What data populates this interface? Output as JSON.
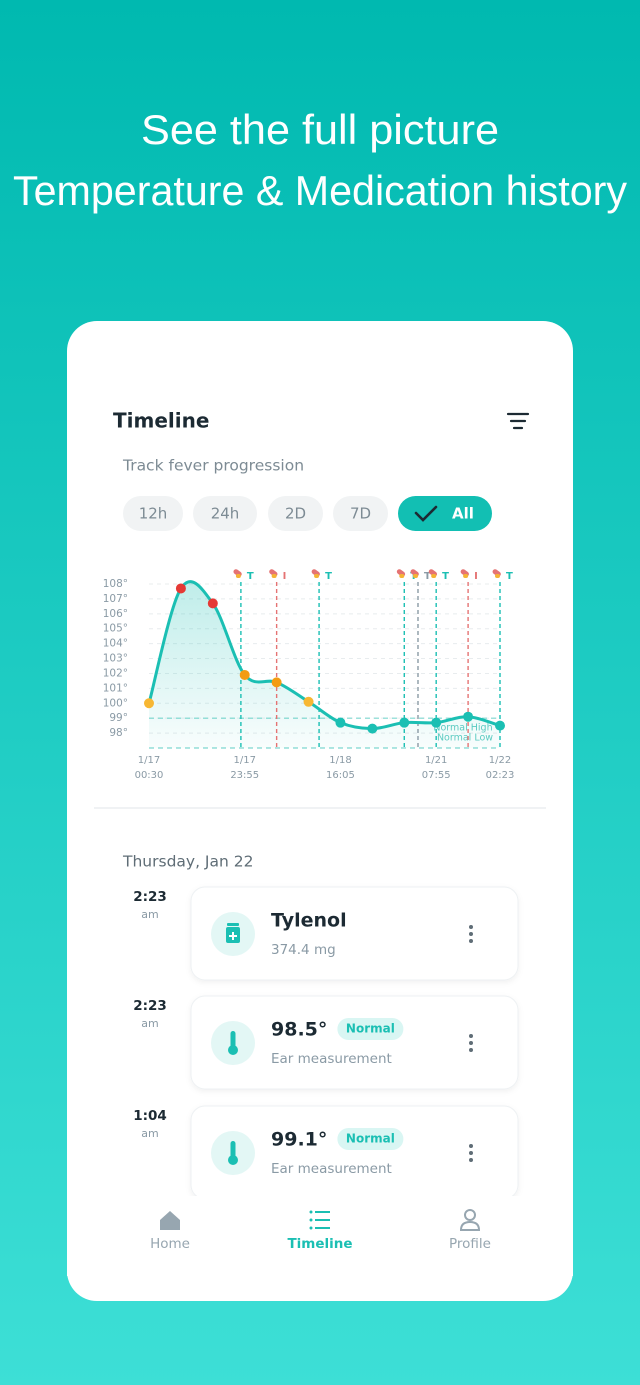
{
  "header": {
    "line1": "See the full picture",
    "line2": "Temperature & Medication history"
  },
  "card": {
    "title": "Timeline",
    "subtitle": "Track fever progression",
    "filters": [
      "12h",
      "24h",
      "2D",
      "7D",
      "All"
    ],
    "selected_filter": 4
  },
  "chart_data": {
    "type": "line",
    "color": "#1bbfb3",
    "categories": [
      [
        "1/17",
        "00:30"
      ],
      null,
      null,
      [
        "1/17",
        "23:55"
      ],
      null,
      null,
      [
        "1/18",
        "16:05"
      ],
      null,
      null,
      [
        "1/21",
        "07:55"
      ],
      null,
      [
        "1/22",
        "02:23"
      ]
    ],
    "values": [
      100.0,
      107.7,
      106.7,
      101.9,
      101.4,
      100.1,
      98.7,
      98.3,
      98.7,
      98.7,
      99.1,
      98.5
    ],
    "point_colors": [
      "#f7b733",
      "#e53935",
      "#e53935",
      "#f39c12",
      "#f39c12",
      "#f7b733",
      "#1bbfb3",
      "#1bbfb3",
      "#1bbfb3",
      "#1bbfb3",
      "#1bbfb3",
      "#1bbfb3"
    ],
    "ylim": [
      97,
      108
    ],
    "yticks": [
      {
        "value": 98,
        "label": "98°"
      },
      {
        "value": 99,
        "label": "99°"
      },
      {
        "value": 100,
        "label": "100°"
      },
      {
        "value": 101,
        "label": "101°"
      },
      {
        "value": 102,
        "label": "102°"
      },
      {
        "value": 103,
        "label": "103°"
      },
      {
        "value": 104,
        "label": "104°"
      },
      {
        "value": 105,
        "label": "105°"
      },
      {
        "value": 106,
        "label": "106°"
      },
      {
        "value": 107,
        "label": "107°"
      },
      {
        "value": 108,
        "label": "108°"
      }
    ],
    "grid": true,
    "reference_lines": [
      {
        "value": 99,
        "label": "Normal High"
      },
      {
        "value": 97,
        "label": "Normal Low"
      }
    ],
    "events": [
      {
        "at": 2.88,
        "label": "T",
        "color": "#1bbfb3"
      },
      {
        "at": 4.0,
        "label": "I",
        "color": "#e57373"
      },
      {
        "at": 5.33,
        "label": "T",
        "color": "#1bbfb3"
      },
      {
        "at": 8.0,
        "label": "T",
        "color": "#1bbfb3"
      },
      {
        "at": 8.43,
        "label": "T",
        "color": "#8a9aa5"
      },
      {
        "at": 9.0,
        "label": "T",
        "color": "#1bbfb3"
      },
      {
        "at": 10.0,
        "label": "I",
        "color": "#e57373"
      },
      {
        "at": 11.0,
        "label": "T",
        "color": "#1bbfb3"
      }
    ]
  },
  "list": {
    "date": "Thursday, Jan 22",
    "entries": [
      {
        "time": "2:23",
        "period": "am",
        "kind": "medication",
        "title": "Tylenol",
        "detail": "374.4 mg"
      },
      {
        "time": "2:23",
        "period": "am",
        "kind": "temperature",
        "title": "98.5°",
        "badge": "Normal",
        "detail": "Ear measurement"
      },
      {
        "time": "1:04",
        "period": "am",
        "kind": "temperature",
        "title": "99.1°",
        "badge": "Normal",
        "detail": "Ear measurement"
      }
    ]
  },
  "nav": {
    "items": [
      "Home",
      "Timeline",
      "Profile"
    ],
    "active": 1
  }
}
